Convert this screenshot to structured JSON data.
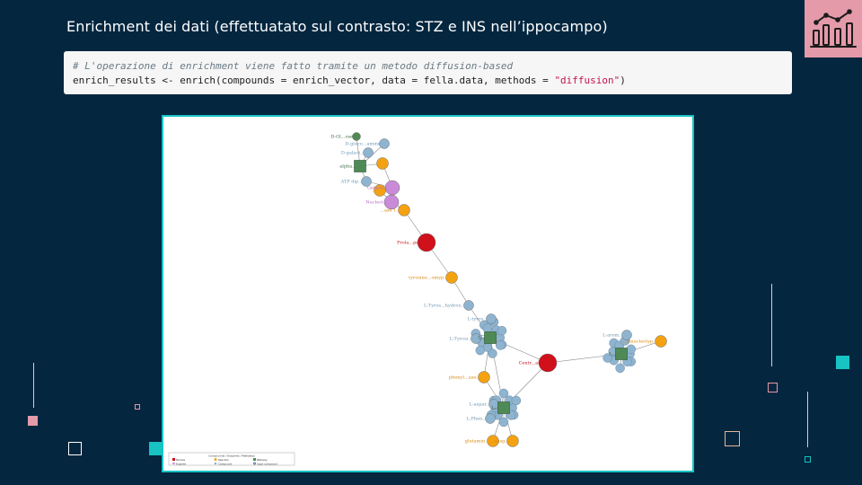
{
  "slide": {
    "title": "Enrichment dei dati (effettuatato sul contrasto: STZ e INS nell’ippocampo)",
    "logo_icon": "bar-chart-trend-icon"
  },
  "code": {
    "comment": "# L'operazione di enrichment viene fatto tramite un metodo diffusion-based",
    "line_prefix": "enrich_results <- enrich(compounds = enrich_vector, data = fella.data, methods = ",
    "line_string": "\"diffusion\"",
    "line_suffix": ")"
  },
  "network": {
    "nodes": [
      {
        "id": "n1",
        "label": "D-Gl...ose",
        "type": "compound-green"
      },
      {
        "id": "n2",
        "label": "D-gluco...amine",
        "type": "compound"
      },
      {
        "id": "n3",
        "label": "D-galact...",
        "type": "compound"
      },
      {
        "id": "n4",
        "label": "alpha...",
        "type": "pathway"
      },
      {
        "id": "n5",
        "label": "...",
        "type": "reaction"
      },
      {
        "id": "n6",
        "label": "ATP dip...",
        "type": "compound"
      },
      {
        "id": "n7",
        "label": "Galacto...",
        "type": "enzyme"
      },
      {
        "id": "n8",
        "label": "Nucleot...",
        "type": "enzyme"
      },
      {
        "id": "n9",
        "label": "...",
        "type": "reaction"
      },
      {
        "id": "n10",
        "label": "...ase 1...",
        "type": "reaction"
      },
      {
        "id": "n11",
        "label": "Prola...pe...",
        "type": "module"
      },
      {
        "id": "n12",
        "label": "tyrosine...omyp...",
        "type": "reaction"
      },
      {
        "id": "n13",
        "label": "L-Tyros...hydrox...",
        "type": "compound"
      },
      {
        "id": "n14",
        "label": "L-tyros...",
        "type": "compound"
      },
      {
        "id": "n15",
        "label": "L-Tyrosi...",
        "type": "compound"
      },
      {
        "id": "n16",
        "label": "L-...",
        "type": "pathway"
      },
      {
        "id": "n17",
        "label": "Centr...at...",
        "type": "module"
      },
      {
        "id": "n18",
        "label": "L-arom...",
        "type": "compound"
      },
      {
        "id": "n19",
        "label": "L-...",
        "type": "pathway"
      },
      {
        "id": "n20",
        "label": "...ylnucleotyp...",
        "type": "reaction"
      },
      {
        "id": "n21",
        "label": "phenyl...ase...",
        "type": "reaction"
      },
      {
        "id": "n22",
        "label": "L-aspar...",
        "type": "compound"
      },
      {
        "id": "n23",
        "label": "L-Phen...",
        "type": "compound"
      },
      {
        "id": "n24",
        "label": "L-...",
        "type": "pathway"
      },
      {
        "id": "n25",
        "label": "glutamin...",
        "type": "reaction"
      },
      {
        "id": "n26",
        "label": "...ansg...",
        "type": "reaction"
      }
    ]
  },
  "legend": {
    "title": "Compounds / Enzymes / Pathways",
    "items": [
      "Pathway",
      "Module",
      "Enzyme",
      "Reaction",
      "Compound",
      "Input compound"
    ]
  },
  "colors": {
    "background": "#04263f",
    "accent_pink": "#e49aa9",
    "accent_teal": "#17c3c3",
    "code_bg": "#f6f6f6",
    "compound": "#8eb4d0",
    "reaction": "#f4a212",
    "module": "#d0101a",
    "pathway": "#4f8a56",
    "enzyme": "#c98bd8"
  }
}
